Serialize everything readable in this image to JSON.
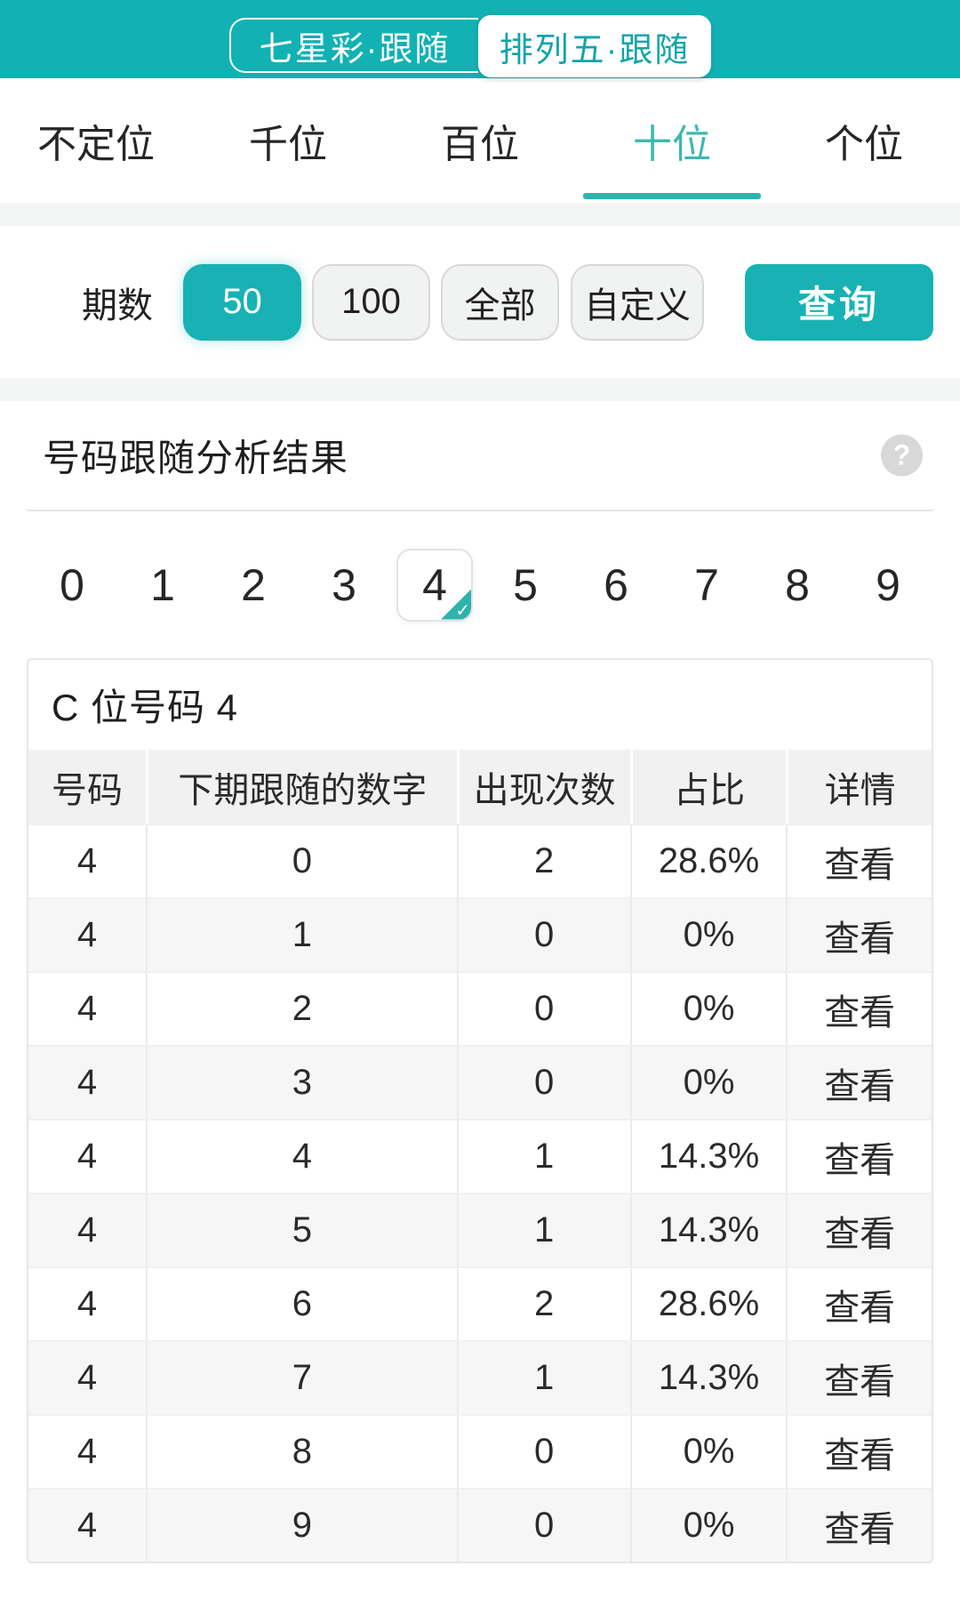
{
  "colors": {
    "teal_header": "#12b1b3",
    "teal_accent": "#2eb3ab",
    "active_tab_text": "#3cb8af",
    "chip_active_bg": "#18b2b4",
    "table_header_bg": "#f1f1f1",
    "row_alt_bg": "#f6f6f6",
    "help_circle_bg": "#d8d8d8"
  },
  "appbar": {
    "game_tabs": [
      {
        "label": "七星彩·跟随",
        "active": false
      },
      {
        "label": "排列五·跟随",
        "active": true
      }
    ]
  },
  "position_tabs": {
    "items": [
      {
        "label": "不定位"
      },
      {
        "label": "千位"
      },
      {
        "label": "百位"
      },
      {
        "label": "十位"
      },
      {
        "label": "个位"
      }
    ],
    "active_index": 3
  },
  "period": {
    "label": "期数",
    "options": [
      {
        "label": "50",
        "active": true
      },
      {
        "label": "100",
        "active": false
      },
      {
        "label": "全部",
        "active": false
      },
      {
        "label": "自定义",
        "active": false
      }
    ],
    "query_label": "查询"
  },
  "section": {
    "title": "号码跟随分析结果",
    "help_icon": "?"
  },
  "digit_selector": {
    "digits": [
      "0",
      "1",
      "2",
      "3",
      "4",
      "5",
      "6",
      "7",
      "8",
      "9"
    ],
    "selected": "4",
    "check_mark": "✓"
  },
  "table": {
    "card_title": "C 位号码 4",
    "headers": [
      "号码",
      "下期跟随的数字",
      "出现次数",
      "占比",
      "详情"
    ],
    "rows": [
      {
        "digit": "4",
        "follow": "0",
        "count": "2",
        "pct": "28.6%",
        "detail": "查看"
      },
      {
        "digit": "4",
        "follow": "1",
        "count": "0",
        "pct": "0%",
        "detail": "查看"
      },
      {
        "digit": "4",
        "follow": "2",
        "count": "0",
        "pct": "0%",
        "detail": "查看"
      },
      {
        "digit": "4",
        "follow": "3",
        "count": "0",
        "pct": "0%",
        "detail": "查看"
      },
      {
        "digit": "4",
        "follow": "4",
        "count": "1",
        "pct": "14.3%",
        "detail": "查看"
      },
      {
        "digit": "4",
        "follow": "5",
        "count": "1",
        "pct": "14.3%",
        "detail": "查看"
      },
      {
        "digit": "4",
        "follow": "6",
        "count": "2",
        "pct": "28.6%",
        "detail": "查看"
      },
      {
        "digit": "4",
        "follow": "7",
        "count": "1",
        "pct": "14.3%",
        "detail": "查看"
      },
      {
        "digit": "4",
        "follow": "8",
        "count": "0",
        "pct": "0%",
        "detail": "查看"
      },
      {
        "digit": "4",
        "follow": "9",
        "count": "0",
        "pct": "0%",
        "detail": "查看"
      }
    ]
  }
}
